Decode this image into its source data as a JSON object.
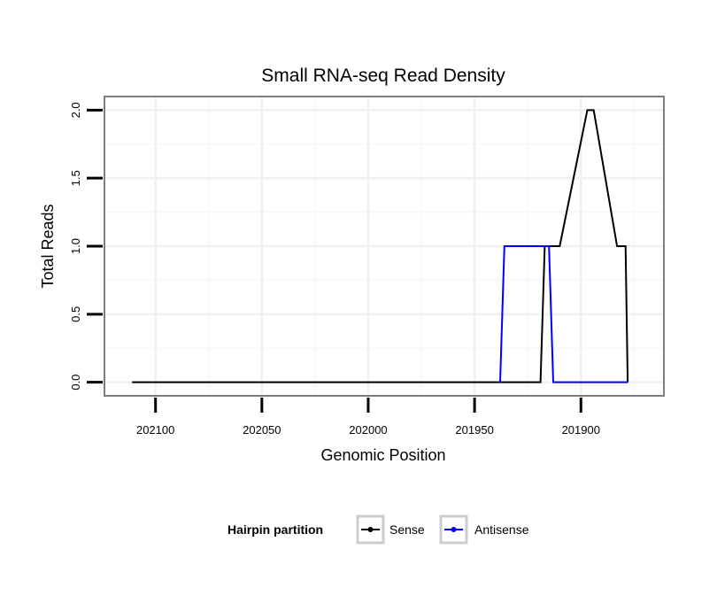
{
  "chart_data": {
    "type": "line",
    "title": "Small RNA-seq Read Density",
    "xlabel": "Genomic Position",
    "ylabel": "Total Reads",
    "x_reversed": true,
    "xlim": [
      202124,
      201861
    ],
    "ylim": [
      -0.1,
      2.1
    ],
    "x_ticks": [
      202100,
      202050,
      202000,
      201950,
      201900
    ],
    "x_tick_labels": [
      "202100",
      "202050",
      "202000",
      "201950",
      "201900"
    ],
    "y_ticks": [
      0,
      0.5,
      1,
      1.5,
      2
    ],
    "y_tick_labels": [
      "0.0",
      "0.5",
      "1.0",
      "1.5",
      "2.0"
    ],
    "grid": true,
    "legend": {
      "title": "Hairpin partition",
      "position": "bottom",
      "entries": [
        {
          "name": "Sense",
          "color": "#000000"
        },
        {
          "name": "Antisense",
          "color": "#0000ff"
        }
      ]
    },
    "series": [
      {
        "name": "Sense",
        "color": "#000000",
        "x": [
          202111,
          201919,
          201917,
          201910,
          201897,
          201894,
          201883,
          201879,
          201878
        ],
        "y": [
          0,
          0,
          1,
          1,
          2,
          2,
          1,
          1,
          0
        ]
      },
      {
        "name": "Antisense",
        "color": "#0000ff",
        "x": [
          201938,
          201936,
          201917,
          201915,
          201913,
          201878
        ],
        "y": [
          0,
          1,
          1,
          1,
          0,
          0
        ]
      }
    ]
  }
}
